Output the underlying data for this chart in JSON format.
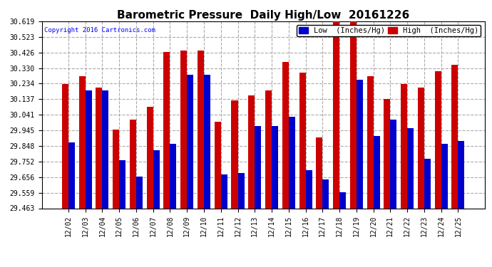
{
  "title": "Barometric Pressure  Daily High/Low  20161226",
  "copyright": "Copyright 2016 Cartronics.com",
  "legend_low": "Low  (Inches/Hg)",
  "legend_high": "High  (Inches/Hg)",
  "dates": [
    "12/02",
    "12/03",
    "12/04",
    "12/05",
    "12/06",
    "12/07",
    "12/08",
    "12/09",
    "12/10",
    "12/11",
    "12/12",
    "12/13",
    "12/14",
    "12/15",
    "12/16",
    "12/17",
    "12/18",
    "12/19",
    "12/20",
    "12/21",
    "12/22",
    "12/23",
    "12/24",
    "12/25"
  ],
  "low_values": [
    29.87,
    30.19,
    30.19,
    29.76,
    29.66,
    29.82,
    29.86,
    30.29,
    30.29,
    29.67,
    29.68,
    29.97,
    29.97,
    30.03,
    29.7,
    29.64,
    29.56,
    30.26,
    29.91,
    30.01,
    29.96,
    29.77,
    29.86,
    29.88
  ],
  "high_values": [
    30.23,
    30.28,
    30.21,
    29.95,
    30.01,
    30.09,
    30.43,
    30.44,
    30.44,
    30.0,
    30.13,
    30.16,
    30.19,
    30.37,
    30.3,
    29.9,
    30.62,
    30.62,
    30.28,
    30.14,
    30.23,
    30.21,
    30.31,
    30.35
  ],
  "low_color": "#0000cc",
  "high_color": "#cc0000",
  "background_color": "#ffffff",
  "plot_bg_color": "#ffffff",
  "grid_color": "#aaaaaa",
  "ylim_min": 29.463,
  "ylim_max": 30.619,
  "yticks": [
    29.463,
    29.559,
    29.656,
    29.752,
    29.848,
    29.945,
    30.041,
    30.137,
    30.234,
    30.33,
    30.426,
    30.523,
    30.619
  ],
  "bar_width": 0.38,
  "title_fontsize": 11,
  "tick_fontsize": 7,
  "legend_fontsize": 7.5
}
